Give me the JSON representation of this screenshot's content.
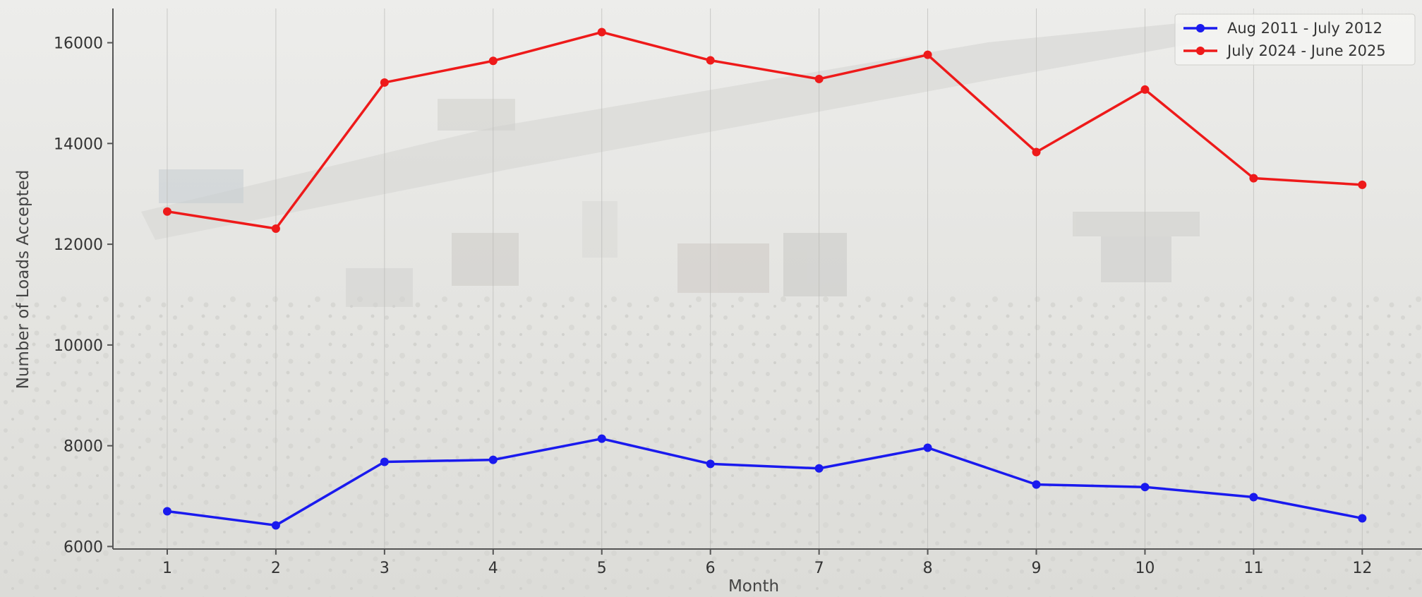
{
  "chart_data": {
    "type": "line",
    "title": "",
    "xlabel": "Month",
    "ylabel": "Number of Loads Accepted",
    "x": [
      1,
      2,
      3,
      4,
      5,
      6,
      7,
      8,
      9,
      10,
      11,
      12
    ],
    "x_ticks": [
      "1",
      "2",
      "3",
      "4",
      "5",
      "6",
      "7",
      "8",
      "9",
      "10",
      "11",
      "12"
    ],
    "y_ticks": [
      "6000",
      "8000",
      "10000",
      "12000",
      "14000",
      "16000"
    ],
    "xlim": [
      0.5,
      12.55
    ],
    "ylim": [
      5950,
      16680
    ],
    "grid": "vertical",
    "legend_position": "top-right",
    "series": [
      {
        "name": "Aug 2011 - July 2012",
        "color": "#1a1aee",
        "values": [
          6700,
          6420,
          7680,
          7720,
          8140,
          7640,
          7550,
          7960,
          7230,
          7180,
          6980,
          6560
        ]
      },
      {
        "name": "July 2024 - June 2025",
        "color": "#ee1a1a",
        "values": [
          12650,
          12310,
          15210,
          15640,
          16210,
          15650,
          15280,
          15760,
          13830,
          15070,
          13310,
          13180
        ]
      }
    ]
  }
}
